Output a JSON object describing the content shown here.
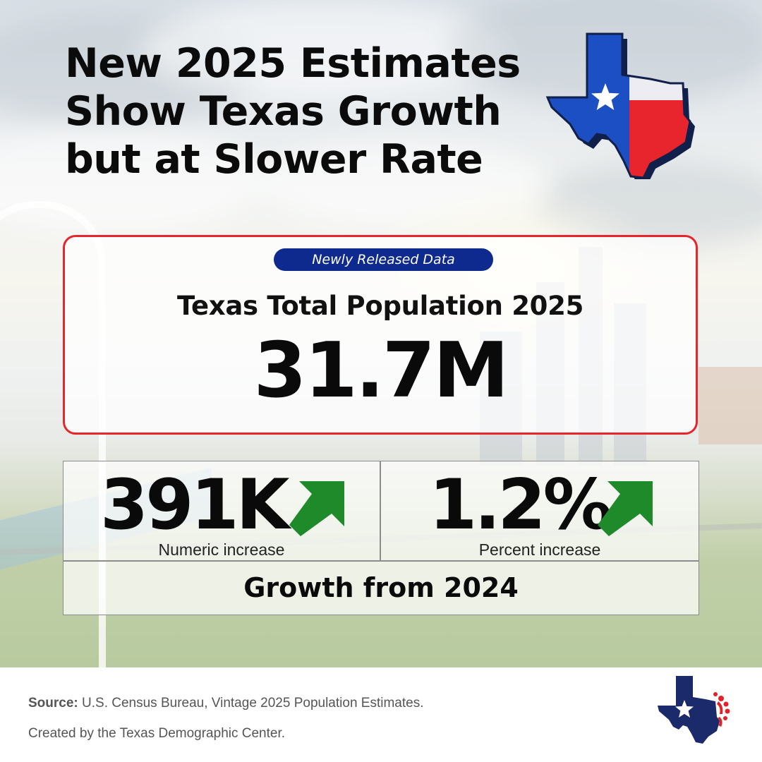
{
  "title": {
    "line1": "New 2025 Estimates",
    "line2": "Show Texas Growth",
    "line3": "but at Slower Rate"
  },
  "headline": {
    "badge": "Newly Released Data",
    "label": "Texas Total Population 2025",
    "value": "31.7M"
  },
  "stats": [
    {
      "value": "391K",
      "caption": "Numeric increase",
      "trend": "up"
    },
    {
      "value": "1.2%",
      "caption": "Percent increase",
      "trend": "up"
    }
  ],
  "growth_label": "Growth from 2024",
  "footer": {
    "source_label": "Source:",
    "source_text": "U.S. Census Bureau, Vintage 2025 Population Estimates.",
    "credit": "Created by the Texas Demographic Center."
  },
  "colors": {
    "flag_blue": "#1d4fc4",
    "flag_red": "#e8252c",
    "accent_red": "#e8252c",
    "badge_navy": "#0e2a8f",
    "arrow_green": "#1e8a2a",
    "logo_navy": "#1b2a6b"
  },
  "icons": {
    "flag_map": "texas-flag-map-icon",
    "trend": "up-right-arrow-icon",
    "logo": "texas-demographic-center-logo"
  }
}
